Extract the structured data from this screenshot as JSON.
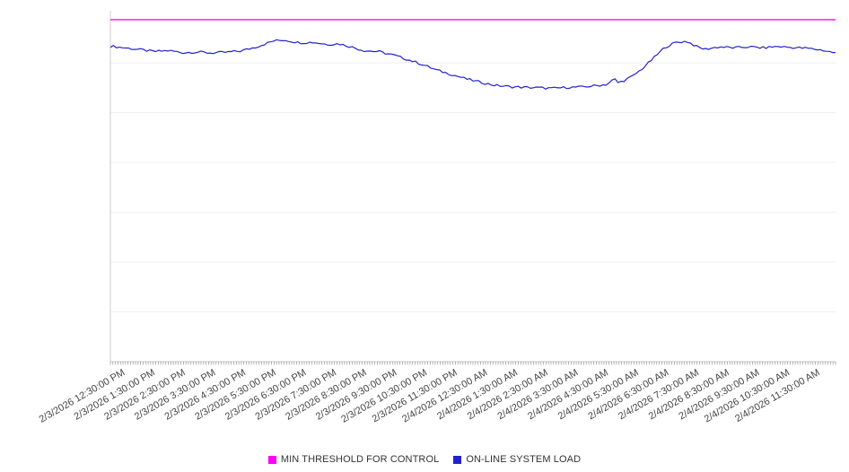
{
  "chart_data": {
    "type": "line",
    "title": "",
    "xlabel": "",
    "ylabel": "",
    "ylim": [
      0,
      100
    ],
    "grid": true,
    "gridline_count": 7,
    "legend_position": "bottom-center",
    "x_labels": [
      "2/3/2026 12:30:00 PM",
      "2/3/2026 1:30:00 PM",
      "2/3/2026 2:30:00 PM",
      "2/3/2026 3:30:00 PM",
      "2/3/2026 4:30:00 PM",
      "2/3/2026 5:30:00 PM",
      "2/3/2026 6:30:00 PM",
      "2/3/2026 7:30:00 PM",
      "2/3/2026 8:30:00 PM",
      "2/3/2026 9:30:00 PM",
      "2/3/2026 10:30:00 PM",
      "2/3/2026 11:30:00 PM",
      "2/4/2026 12:30:00 AM",
      "2/4/2026 1:30:00 AM",
      "2/4/2026 2:30:00 AM",
      "2/4/2026 3:30:00 AM",
      "2/4/2026 4:30:00 AM",
      "2/4/2026 5:30:00 AM",
      "2/4/2026 6:30:00 AM",
      "2/4/2026 7:30:00 AM",
      "2/4/2026 8:30:00 AM",
      "2/4/2026 9:30:00 AM",
      "2/4/2026 10:30:00 AM",
      "2/4/2026 11:30:00 AM"
    ],
    "series": [
      {
        "name": "MIN THRESHOLD FOR CONTROL",
        "color": "#FF00FF",
        "style": "constant",
        "value": 99.5
      },
      {
        "name": "ON-LINE SYSTEM LOAD",
        "color": "#2222CC",
        "style": "line",
        "noise_amplitude": 0.35,
        "points": [
          [
            0.0,
            91.8
          ],
          [
            0.02,
            91.3
          ],
          [
            0.04,
            90.8
          ],
          [
            0.06,
            90.2
          ],
          [
            0.08,
            90.5
          ],
          [
            0.1,
            89.9
          ],
          [
            0.12,
            90.1
          ],
          [
            0.14,
            89.8
          ],
          [
            0.16,
            90.0
          ],
          [
            0.18,
            90.4
          ],
          [
            0.2,
            91.5
          ],
          [
            0.225,
            93.3
          ],
          [
            0.24,
            93.6
          ],
          [
            0.26,
            92.8
          ],
          [
            0.28,
            92.9
          ],
          [
            0.3,
            92.3
          ],
          [
            0.315,
            92.5
          ],
          [
            0.33,
            91.7
          ],
          [
            0.35,
            90.5
          ],
          [
            0.37,
            90.2
          ],
          [
            0.39,
            89.2
          ],
          [
            0.41,
            87.9
          ],
          [
            0.43,
            86.5
          ],
          [
            0.45,
            84.8
          ],
          [
            0.47,
            83.6
          ],
          [
            0.49,
            82.3
          ],
          [
            0.51,
            81.3
          ],
          [
            0.53,
            80.4
          ],
          [
            0.55,
            80.0
          ],
          [
            0.57,
            79.8
          ],
          [
            0.59,
            79.7
          ],
          [
            0.61,
            79.5
          ],
          [
            0.63,
            79.8
          ],
          [
            0.65,
            79.9
          ],
          [
            0.67,
            80.3
          ],
          [
            0.685,
            80.7
          ],
          [
            0.695,
            82.3
          ],
          [
            0.7,
            81.2
          ],
          [
            0.705,
            81.5
          ],
          [
            0.72,
            83.0
          ],
          [
            0.735,
            85.5
          ],
          [
            0.75,
            88.5
          ],
          [
            0.765,
            91.5
          ],
          [
            0.78,
            92.9
          ],
          [
            0.795,
            93.2
          ],
          [
            0.81,
            91.5
          ],
          [
            0.82,
            90.9
          ],
          [
            0.84,
            91.6
          ],
          [
            0.86,
            91.3
          ],
          [
            0.88,
            91.6
          ],
          [
            0.9,
            91.3
          ],
          [
            0.92,
            91.7
          ],
          [
            0.94,
            91.4
          ],
          [
            0.96,
            91.2
          ],
          [
            0.98,
            90.7
          ],
          [
            1.0,
            89.8
          ]
        ]
      }
    ]
  },
  "legend": {
    "items": [
      {
        "label": "MIN THRESHOLD FOR CONTROL",
        "color": "#FF00FF"
      },
      {
        "label": "ON-LINE SYSTEM LOAD",
        "color": "#2222CC"
      }
    ]
  }
}
